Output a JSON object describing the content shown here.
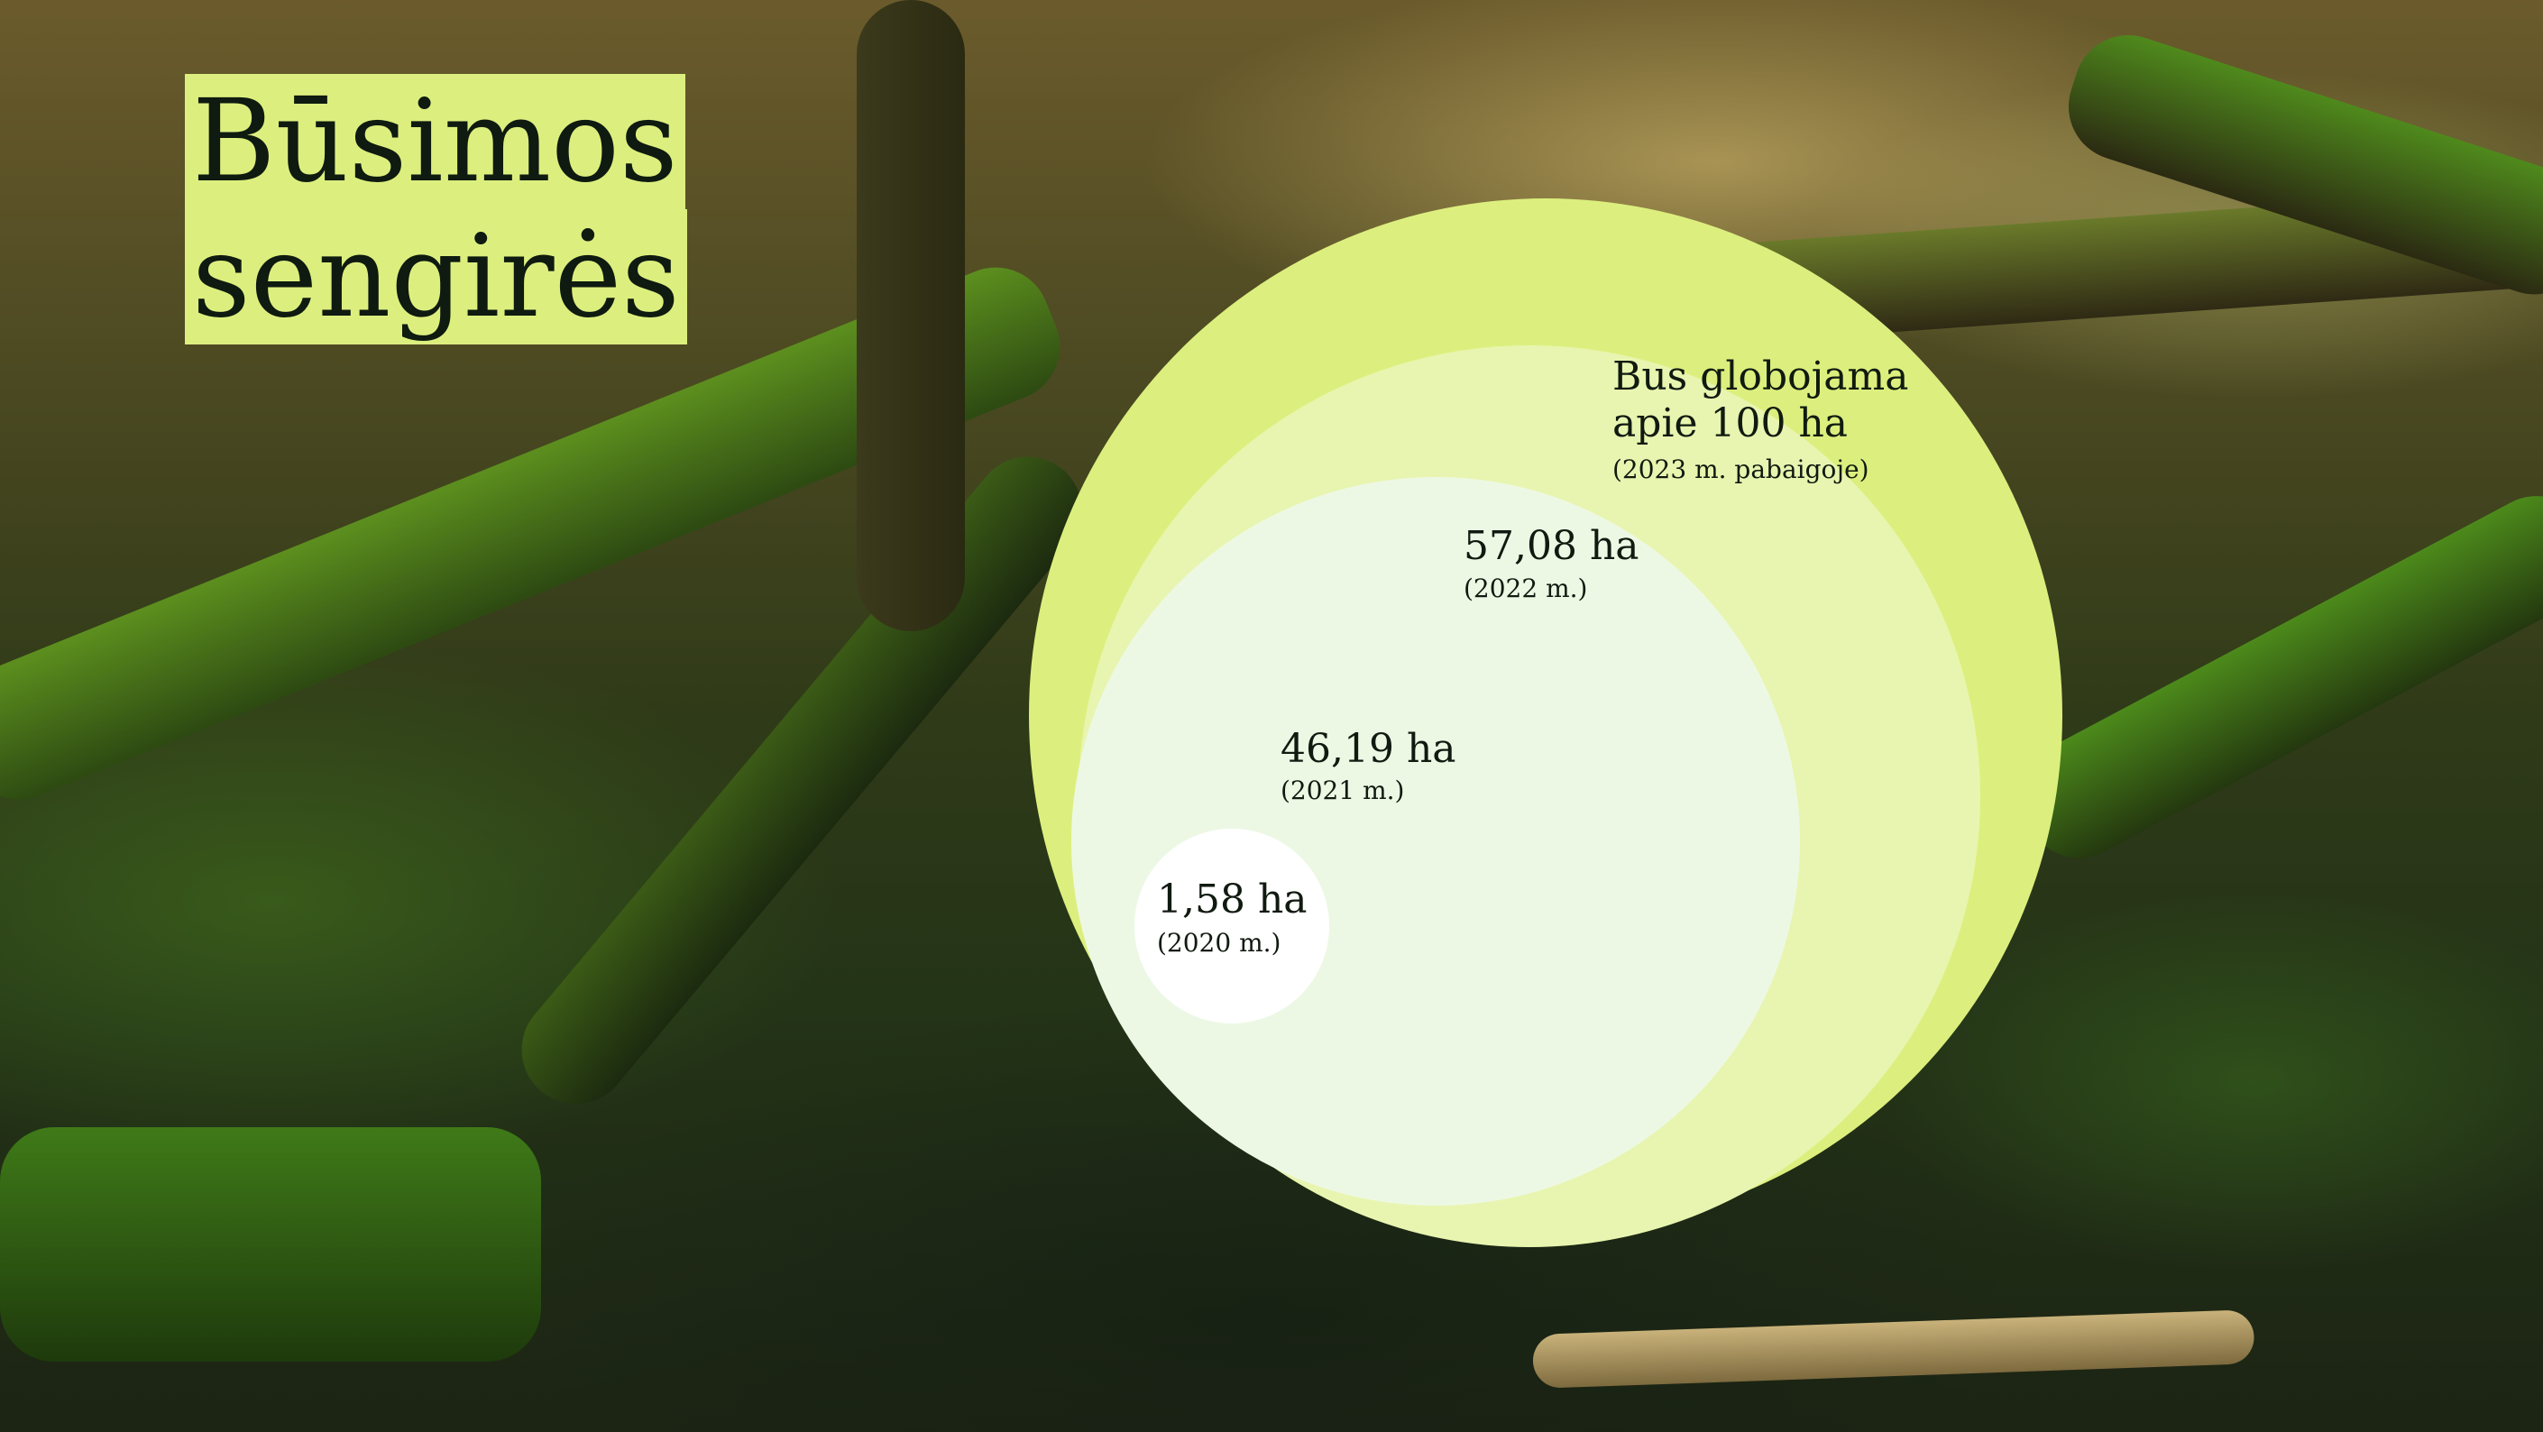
{
  "title": {
    "line1": "Būsimos",
    "line2": "sengirės"
  },
  "chart_data": {
    "type": "nested-circles",
    "unit": "ha",
    "series": [
      {
        "label": "1,58 ha",
        "sublabel": "(2020 m.)",
        "year": 2020,
        "value": 1.58,
        "color": "#ffffff"
      },
      {
        "label": "46,19 ha",
        "sublabel": "(2021 m.)",
        "year": 2021,
        "value": 46.19,
        "color": "#edf8e4"
      },
      {
        "label": "57,08 ha",
        "sublabel": "(2022 m.)",
        "year": 2022,
        "value": 57.08,
        "color": "#e8f5b0"
      },
      {
        "label_lines": [
          "Bus globojama",
          "apie 100 ha"
        ],
        "sublabel": "(2023 m. pabaigoje)",
        "year": 2023,
        "value": 100,
        "color": "#dcef7e"
      }
    ]
  }
}
